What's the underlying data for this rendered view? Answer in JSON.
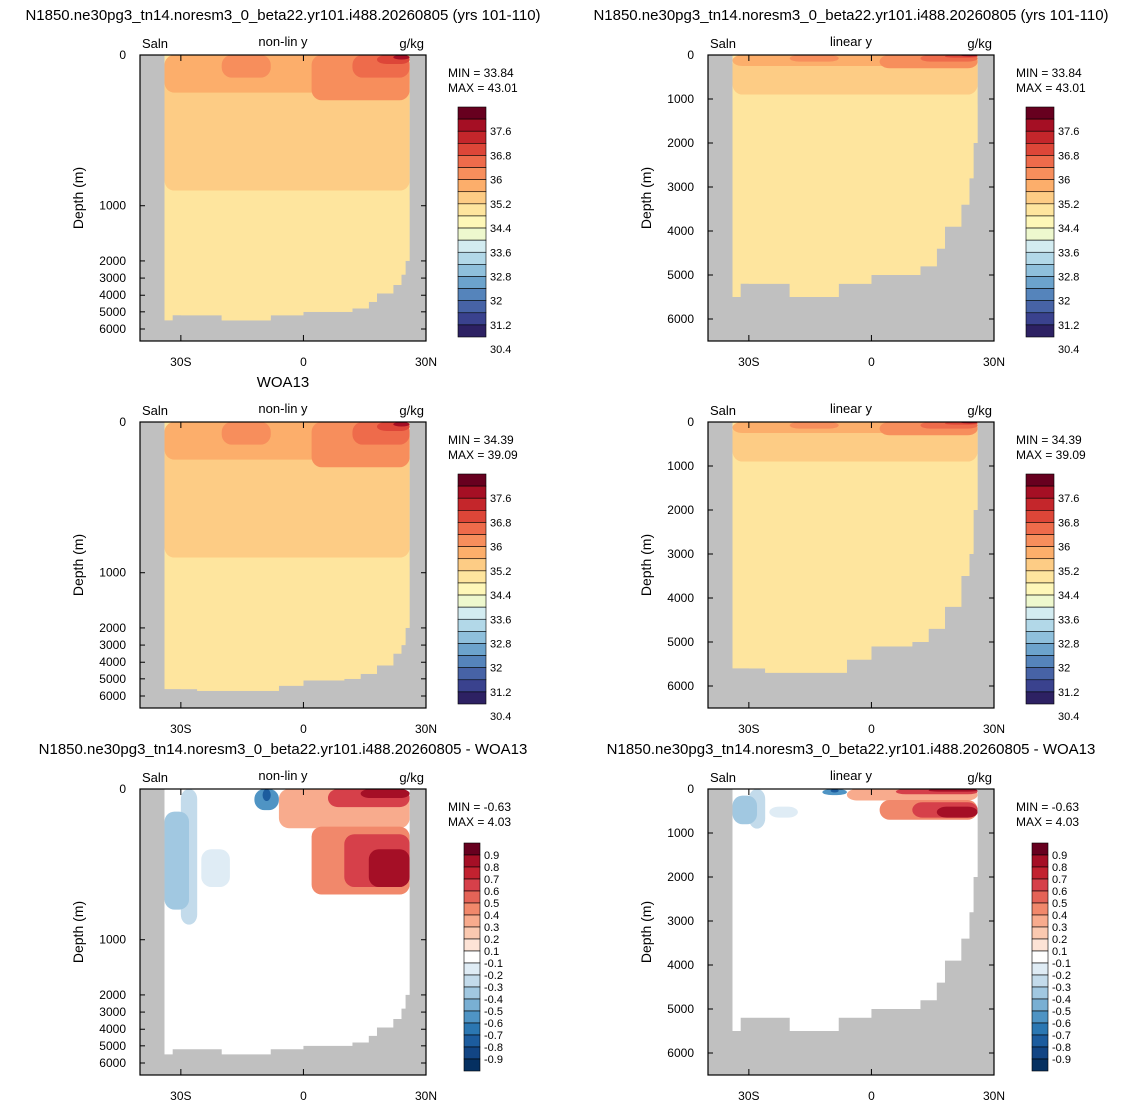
{
  "figure": {
    "background": "#ffffff",
    "land_color": "#c0c0c0"
  },
  "chart_data": [
    {
      "type": "heatmap",
      "id": "model-nonlin",
      "title": "N1850.ne30pg3_tn14.noresm3_0_beta22.yr101.i488.20260805 (yrs 101-110)",
      "left_label": "Saln",
      "center_label": "non-lin y",
      "right_label": "g/kg",
      "ylabel": "Depth (m)",
      "yscale": "non-linear",
      "y_ticks": [
        "0",
        "1000",
        "2000",
        "3000",
        "4000",
        "5000",
        "6000"
      ],
      "x_ticks": [
        "30S",
        "0",
        "30N"
      ],
      "xlim": [
        -40,
        30
      ],
      "ylim": [
        0,
        6500
      ],
      "min_label": "MIN =  33.84",
      "max_label": "MAX =  43.01",
      "colorbar": [
        "37.6",
        "36.8",
        "36",
        "35.2",
        "34.4",
        "33.6",
        "32.8",
        "32",
        "31.2",
        "30.4"
      ]
    },
    {
      "type": "heatmap",
      "id": "model-lin",
      "title": "N1850.ne30pg3_tn14.noresm3_0_beta22.yr101.i488.20260805 (yrs 101-110)",
      "left_label": "Saln",
      "center_label": "linear y",
      "right_label": "g/kg",
      "ylabel": "Depth (m)",
      "yscale": "linear",
      "y_ticks": [
        "0",
        "1000",
        "2000",
        "3000",
        "4000",
        "5000",
        "6000"
      ],
      "x_ticks": [
        "30S",
        "0",
        "30N"
      ],
      "xlim": [
        -40,
        30
      ],
      "ylim": [
        0,
        6500
      ],
      "min_label": "MIN =  33.84",
      "max_label": "MAX =  43.01",
      "colorbar": [
        "37.6",
        "36.8",
        "36",
        "35.2",
        "34.4",
        "33.6",
        "32.8",
        "32",
        "31.2",
        "30.4"
      ]
    },
    {
      "type": "heatmap",
      "id": "obs-nonlin",
      "title": "WOA13",
      "left_label": "Saln",
      "center_label": "non-lin y",
      "right_label": "g/kg",
      "ylabel": "Depth (m)",
      "yscale": "non-linear",
      "y_ticks": [
        "0",
        "1000",
        "2000",
        "3000",
        "4000",
        "5000",
        "6000"
      ],
      "x_ticks": [
        "30S",
        "0",
        "30N"
      ],
      "xlim": [
        -40,
        30
      ],
      "ylim": [
        0,
        6500
      ],
      "min_label": "MIN =  34.39",
      "max_label": "MAX =  39.09",
      "colorbar": [
        "37.6",
        "36.8",
        "36",
        "35.2",
        "34.4",
        "33.6",
        "32.8",
        "32",
        "31.2",
        "30.4"
      ]
    },
    {
      "type": "heatmap",
      "id": "obs-lin",
      "title": "",
      "left_label": "Saln",
      "center_label": "linear y",
      "right_label": "g/kg",
      "ylabel": "Depth (m)",
      "yscale": "linear",
      "y_ticks": [
        "0",
        "1000",
        "2000",
        "3000",
        "4000",
        "5000",
        "6000"
      ],
      "x_ticks": [
        "30S",
        "0",
        "30N"
      ],
      "xlim": [
        -40,
        30
      ],
      "ylim": [
        0,
        6500
      ],
      "min_label": "MIN =  34.39",
      "max_label": "MAX =  39.09",
      "colorbar": [
        "37.6",
        "36.8",
        "36",
        "35.2",
        "34.4",
        "33.6",
        "32.8",
        "32",
        "31.2",
        "30.4"
      ]
    },
    {
      "type": "heatmap",
      "id": "diff-nonlin",
      "title": "N1850.ne30pg3_tn14.noresm3_0_beta22.yr101.i488.20260805 - WOA13",
      "left_label": "Saln",
      "center_label": "non-lin y",
      "right_label": "g/kg",
      "ylabel": "Depth (m)",
      "yscale": "non-linear",
      "y_ticks": [
        "0",
        "1000",
        "2000",
        "3000",
        "4000",
        "5000",
        "6000"
      ],
      "x_ticks": [
        "30S",
        "0",
        "30N"
      ],
      "xlim": [
        -40,
        30
      ],
      "ylim": [
        0,
        6500
      ],
      "min_label": "MIN = -0.63",
      "max_label": "MAX =   4.03",
      "colorbar": [
        "0.9",
        "0.8",
        "0.7",
        "0.6",
        "0.5",
        "0.4",
        "0.3",
        "0.2",
        "0.1",
        "-0.1",
        "-0.2",
        "-0.3",
        "-0.4",
        "-0.5",
        "-0.6",
        "-0.7",
        "-0.8",
        "-0.9"
      ]
    },
    {
      "type": "heatmap",
      "id": "diff-lin",
      "title": "N1850.ne30pg3_tn14.noresm3_0_beta22.yr101.i488.20260805 - WOA13",
      "left_label": "Saln",
      "center_label": "linear y",
      "right_label": "g/kg",
      "ylabel": "Depth (m)",
      "yscale": "linear",
      "y_ticks": [
        "0",
        "1000",
        "2000",
        "3000",
        "4000",
        "5000",
        "6000"
      ],
      "x_ticks": [
        "30S",
        "0",
        "30N"
      ],
      "xlim": [
        -40,
        30
      ],
      "ylim": [
        0,
        6500
      ],
      "min_label": "MIN = -0.63",
      "max_label": "MAX =   4.03",
      "colorbar": [
        "0.9",
        "0.8",
        "0.7",
        "0.6",
        "0.5",
        "0.4",
        "0.3",
        "0.2",
        "0.1",
        "-0.1",
        "-0.2",
        "-0.3",
        "-0.4",
        "-0.5",
        "-0.6",
        "-0.7",
        "-0.8",
        "-0.9"
      ]
    }
  ]
}
